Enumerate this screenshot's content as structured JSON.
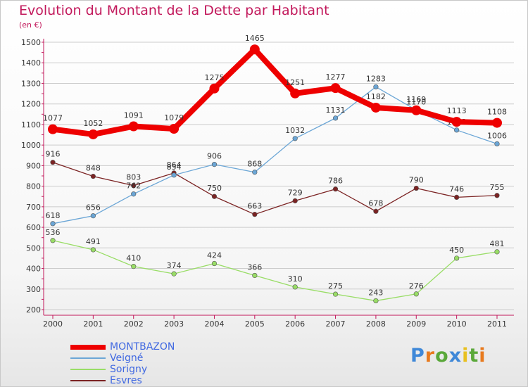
{
  "title": "Evolution du Montant de la Dette par Habitant",
  "subtitle": "(en €)",
  "logo": "Proxiti",
  "chart_data": {
    "type": "line",
    "x": [
      "2000",
      "2001",
      "2002",
      "2003",
      "2004",
      "2005",
      "2006",
      "2007",
      "2008",
      "2009",
      "2010",
      "2011"
    ],
    "ylim": [
      200,
      1500
    ],
    "yticks": [
      200,
      300,
      400,
      500,
      600,
      700,
      800,
      900,
      1000,
      1100,
      1200,
      1300,
      1400,
      1500
    ],
    "grid": "horizontal",
    "legend_position": "bottom-left",
    "series": [
      {
        "name": "Esvres",
        "color": "#7b2323",
        "values": [
          916,
          848,
          803,
          864,
          750,
          663,
          729,
          786,
          678,
          790,
          746,
          755
        ]
      },
      {
        "name": "Sorigny",
        "color": "#99dd66",
        "values": [
          536,
          491,
          410,
          374,
          424,
          366,
          310,
          275,
          243,
          276,
          450,
          481
        ]
      },
      {
        "name": "Veigné",
        "color": "#6ba6d6",
        "values": [
          618,
          656,
          762,
          854,
          906,
          868,
          1032,
          1131,
          1283,
          1170,
          1073,
          1006
        ]
      },
      {
        "name": "MONTBAZON",
        "color": "#ee0000",
        "values": [
          1077,
          1052,
          1091,
          1079,
          1275,
          1465,
          1251,
          1277,
          1182,
          1169,
          1113,
          1108
        ]
      }
    ],
    "legend": [
      "MONTBAZON",
      "Veigné",
      "Sorigny",
      "Esvres"
    ]
  }
}
